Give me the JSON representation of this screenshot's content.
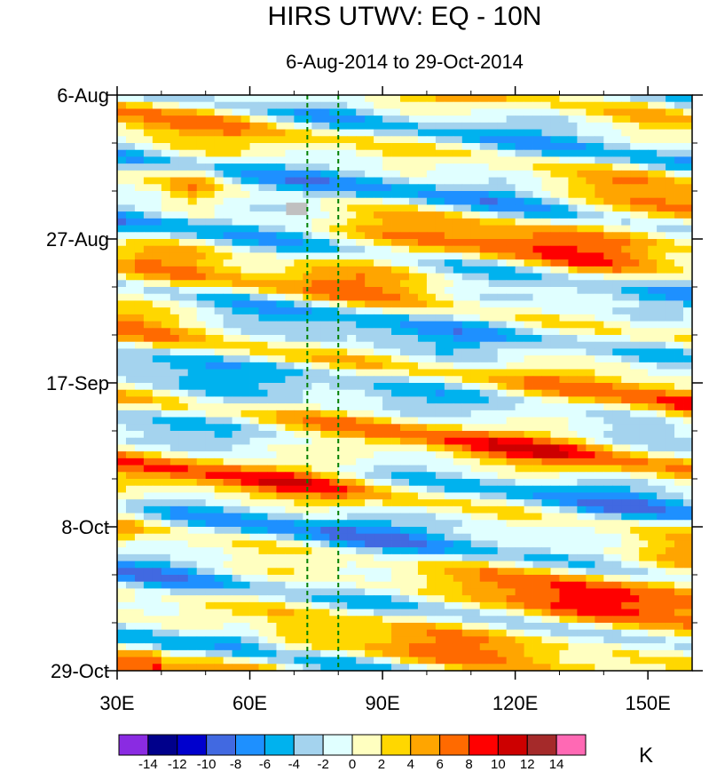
{
  "chart_data": {
    "type": "heatmap",
    "title": "HIRS UTWV: EQ - 10N",
    "subtitle": "6-Aug-2014 to 29-Oct-2014",
    "x_axis": {
      "label": "",
      "range": [
        30,
        160
      ],
      "ticks": [
        30,
        60,
        90,
        120,
        150
      ],
      "tick_labels": [
        "30E",
        "60E",
        "90E",
        "120E",
        "150E"
      ]
    },
    "y_axis": {
      "label": "",
      "reversed": true,
      "range_days": [
        0,
        84
      ],
      "ticks": [
        0,
        21,
        42,
        63,
        84
      ],
      "tick_labels": [
        "6-Aug",
        "27-Aug",
        "17-Sep",
        "8-Oct",
        "29-Oct"
      ]
    },
    "colorbar": {
      "unit": "K",
      "levels": [
        -14,
        -12,
        -10,
        -8,
        -6,
        -4,
        -2,
        0,
        2,
        4,
        6,
        8,
        10,
        12,
        14
      ],
      "labels": [
        "-14",
        "-12",
        "-10",
        "-8",
        "-6",
        "-4",
        "-2",
        "0",
        "2",
        "4",
        "6",
        "8",
        "10",
        "12",
        "14"
      ],
      "colors": [
        "#8a2be2",
        "#00008b",
        "#0000cd",
        "#4169e1",
        "#1e90ff",
        "#00b2ee",
        "#a4d3ee",
        "#e0ffff",
        "#ffffc0",
        "#ffd700",
        "#ffa500",
        "#ff6a00",
        "#ff0000",
        "#cd0000",
        "#a52a2a",
        "#ff69b4"
      ]
    },
    "reference_lines": [
      {
        "lon": 73,
        "style": "dashed",
        "color": "#008000"
      },
      {
        "lon": 80,
        "style": "dashed",
        "color": "#008000"
      }
    ],
    "grid": false
  }
}
